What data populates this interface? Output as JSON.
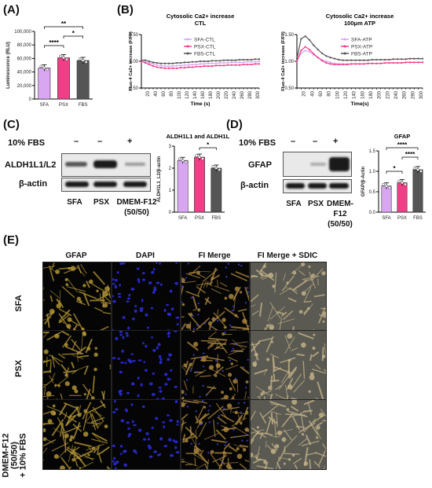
{
  "panels": {
    "a": "(A)",
    "b": "(B)",
    "c": "(C)",
    "d": "(D)",
    "e": "(E)"
  },
  "colors": {
    "sfa": "#d9a6f2",
    "psx": "#ef3f86",
    "fbs": "#555555"
  },
  "chart_data": [
    {
      "type": "bar",
      "panel": "(A)",
      "categories": [
        "SFA",
        "PSX",
        "FBS"
      ],
      "values": [
        46000,
        61000,
        57000
      ],
      "ylabel": "Luminescence (RLU)",
      "ylim": [
        0,
        100000
      ],
      "yticks": [
        "0",
        "20,000",
        "40,000",
        "60,000",
        "80,000",
        "100,000"
      ],
      "significance": [
        {
          "from": "SFA",
          "to": "FBS",
          "label": "**"
        },
        {
          "from": "PSX",
          "to": "FBS",
          "label": "*"
        },
        {
          "from": "SFA",
          "to": "PSX",
          "label": "****"
        }
      ]
    },
    {
      "type": "line",
      "panel": "(B) left",
      "title": "Cytosolic Ca2+ increase",
      "subtitle": "CTL",
      "xlabel": "Time (s)",
      "ylabel": "Fluo-4 Ca2+ increase (F/F0)",
      "ylim": [
        0.5,
        1.5
      ],
      "yticks": [
        "0.50",
        "1.00",
        "1.50"
      ],
      "x": [
        0,
        10,
        20,
        30,
        40,
        50,
        60,
        70,
        80,
        90,
        100,
        110,
        120,
        130,
        140,
        150,
        160,
        170,
        180,
        190,
        200,
        210,
        220,
        230,
        240,
        250,
        260,
        270,
        280,
        290,
        300
      ],
      "series": [
        {
          "name": "SFA-CTL",
          "values": [
            1.0,
            0.99,
            0.97,
            0.95,
            0.93,
            0.92,
            0.91,
            0.91,
            0.91,
            0.92,
            0.92,
            0.93,
            0.93,
            0.94,
            0.94,
            0.95,
            0.95,
            0.96,
            0.96,
            0.96,
            0.97,
            0.97,
            0.97,
            0.98,
            0.98,
            0.98,
            0.98,
            0.99,
            0.99,
            0.99,
            1.0
          ]
        },
        {
          "name": "PSX-CTL",
          "values": [
            1.0,
            0.97,
            0.94,
            0.91,
            0.89,
            0.88,
            0.87,
            0.87,
            0.87,
            0.87,
            0.88,
            0.88,
            0.89,
            0.89,
            0.9,
            0.9,
            0.91,
            0.91,
            0.91,
            0.92,
            0.92,
            0.92,
            0.93,
            0.93,
            0.93,
            0.93,
            0.94,
            0.94,
            0.94,
            0.95,
            0.95
          ]
        },
        {
          "name": "FBS-CTL",
          "values": [
            1.02,
            1.02,
            1.0,
            0.98,
            0.97,
            0.96,
            0.96,
            0.96,
            0.96,
            0.97,
            0.97,
            0.98,
            0.98,
            0.99,
            0.99,
            1.0,
            1.0,
            1.0,
            1.01,
            1.01,
            1.01,
            1.02,
            1.02,
            1.02,
            1.02,
            1.03,
            1.03,
            1.03,
            1.03,
            1.04,
            1.04
          ]
        }
      ]
    },
    {
      "type": "line",
      "panel": "(B) right",
      "title": "Cytosolic Ca2+ increase",
      "subtitle": "100μm ATP",
      "xlabel": "Time(s)",
      "ylabel": "Fluo-4 Ca2+ increase (F/F0)",
      "ylim": [
        0.5,
        1.5
      ],
      "yticks": [
        "0.50",
        "1.00",
        "1.50"
      ],
      "x": [
        0,
        10,
        20,
        30,
        40,
        50,
        60,
        70,
        80,
        90,
        100,
        110,
        120,
        130,
        140,
        150,
        160,
        170,
        180,
        190,
        200,
        210,
        220,
        230,
        240,
        250,
        260,
        270,
        280,
        290,
        300
      ],
      "series": [
        {
          "name": "SFA-ATP",
          "values": [
            1.0,
            1.15,
            1.2,
            1.18,
            1.12,
            1.07,
            1.03,
            1.0,
            0.98,
            0.96,
            0.95,
            0.95,
            0.95,
            0.95,
            0.95,
            0.95,
            0.95,
            0.96,
            0.96,
            0.96,
            0.96,
            0.97,
            0.97,
            0.97,
            0.97,
            0.97,
            0.98,
            0.98,
            0.98,
            0.98,
            0.98
          ]
        },
        {
          "name": "PSX-ATP",
          "values": [
            1.0,
            1.2,
            1.27,
            1.22,
            1.14,
            1.07,
            1.01,
            0.97,
            0.95,
            0.94,
            0.94,
            0.94,
            0.94,
            0.95,
            0.95,
            0.95,
            0.95,
            0.96,
            0.96,
            0.96,
            0.96,
            0.97,
            0.97,
            0.97,
            0.97,
            0.97,
            0.98,
            0.98,
            0.98,
            0.98,
            0.98
          ]
        },
        {
          "name": "FBS-ATP",
          "values": [
            1.05,
            1.42,
            1.47,
            1.4,
            1.3,
            1.22,
            1.15,
            1.1,
            1.07,
            1.05,
            1.03,
            1.02,
            1.02,
            1.02,
            1.02,
            1.02,
            1.02,
            1.02,
            1.03,
            1.03,
            1.03,
            1.03,
            1.03,
            1.04,
            1.04,
            1.04,
            1.04,
            1.05,
            1.05,
            1.05,
            1.05
          ]
        }
      ]
    },
    {
      "type": "bar",
      "panel": "(C)",
      "title": "ALDH1L1 and ALDH1L2",
      "categories": [
        "SFA",
        "PSX",
        "FBS"
      ],
      "values": [
        2.35,
        2.5,
        2.0
      ],
      "ylabel": "ALDH1L1_L2/β-actin",
      "ylim": [
        0,
        3
      ],
      "yticks": [
        "0",
        "1",
        "2",
        "3"
      ],
      "significance": [
        {
          "from": "PSX",
          "to": "FBS",
          "label": "*"
        }
      ]
    },
    {
      "type": "bar",
      "panel": "(D)",
      "title": "GFAP",
      "categories": [
        "SFA",
        "PSX",
        "FBS"
      ],
      "values": [
        0.64,
        0.72,
        1.04
      ],
      "ylabel": "GFAP/β-Actin",
      "ylim": [
        0,
        1.5
      ],
      "yticks": [
        "0.0",
        "0.5",
        "1.0",
        "1.5"
      ],
      "significance": [
        {
          "from": "SFA",
          "to": "FBS",
          "label": "****"
        },
        {
          "from": "PSX",
          "to": "FBS",
          "label": "****"
        },
        {
          "from": "SFA",
          "to": "PSX",
          "label": "*"
        }
      ]
    }
  ],
  "western_c": {
    "condition": "10% FBS",
    "signs": [
      "–",
      "–",
      "+"
    ],
    "bands": [
      "ALDH1L1/L2",
      "β-actin"
    ],
    "lanes": [
      "SFA",
      "PSX",
      "DMEM-F12",
      "(50/50)"
    ]
  },
  "western_d": {
    "condition": "10% FBS",
    "signs": [
      "–",
      "–",
      "+"
    ],
    "bands": [
      "GFAP",
      "β-actin"
    ],
    "lanes": [
      "SFA",
      "PSX",
      "DMEM-",
      "F12",
      "(50/50)"
    ]
  },
  "micrographs": {
    "columns": [
      "GFAP",
      "DAPI",
      "FI Merge",
      "FI Merge + SDIC"
    ],
    "rows": [
      "SFA",
      "PSX",
      "DMEM-F12\n(50/50)\n+ 10% FBS"
    ]
  }
}
